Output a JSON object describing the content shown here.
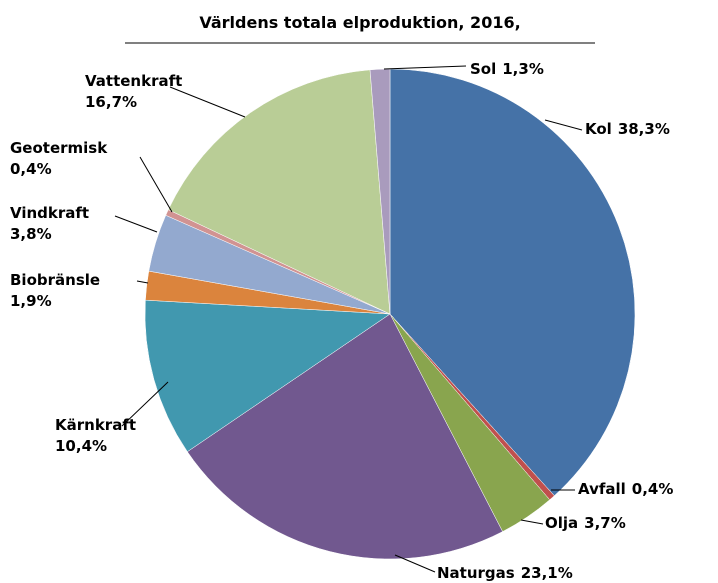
{
  "chart_data": {
    "type": "pie",
    "title": "Världens totala elproduktion, 2016,",
    "categories": [
      "Kol",
      "Avfall",
      "Olja",
      "Naturgas",
      "Kärnkraft",
      "Biobränsle",
      "Vindkraft",
      "Geotermisk",
      "Vattenkraft",
      "Sol"
    ],
    "values": [
      38.3,
      0.4,
      3.7,
      23.1,
      10.4,
      1.9,
      3.8,
      0.4,
      16.7,
      1.3
    ],
    "value_labels": [
      "38,3%",
      "0,4%",
      "3,7%",
      "23,1%",
      "10,4%",
      "1,9%",
      "3,8%",
      "0,4%",
      "16,7%",
      "1,3%"
    ],
    "colors": [
      "#4572a7",
      "#c0504d",
      "#89a54e",
      "#71588f",
      "#4198af",
      "#db843d",
      "#93a9cf",
      "#d19392",
      "#b9cd96",
      "#a99bbd"
    ]
  }
}
